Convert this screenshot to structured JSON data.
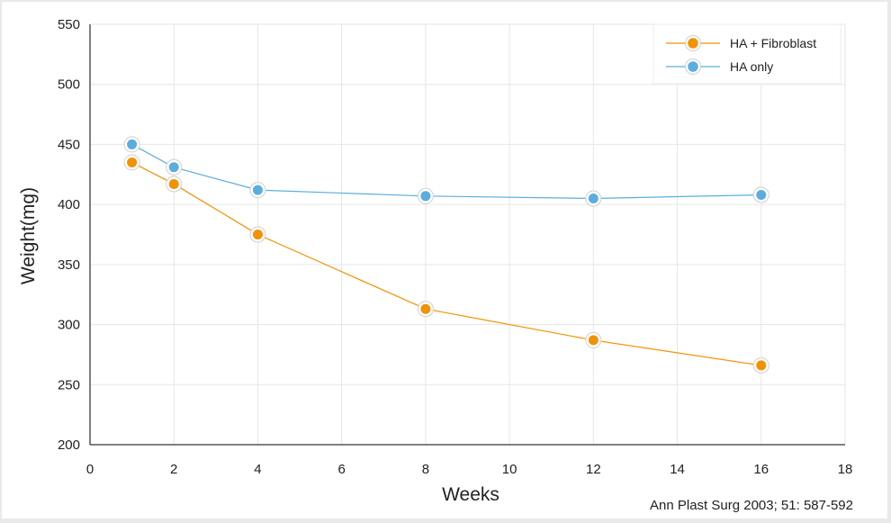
{
  "colors": {
    "series1": "#f39200",
    "series2": "#5aaede",
    "grid": "#e6e6e6",
    "axis": "#000000"
  },
  "source_note": "Ann Plast Surg 2003; 51: 587-592",
  "chart_data": {
    "type": "line",
    "title": "",
    "xlabel": "Weeks",
    "ylabel": "Weight(mg)",
    "xlim": [
      0,
      18
    ],
    "ylim": [
      200,
      550
    ],
    "x_ticks": [
      0,
      2,
      4,
      6,
      8,
      10,
      12,
      14,
      16,
      18
    ],
    "y_ticks": [
      200,
      250,
      300,
      350,
      400,
      450,
      500,
      550
    ],
    "grid": true,
    "legend_position": "top-right",
    "series": [
      {
        "name": "HA + Fibroblast",
        "color": "#f39200",
        "x": [
          1,
          2,
          4,
          8,
          12,
          16
        ],
        "y": [
          435,
          417,
          375,
          313,
          287,
          266
        ]
      },
      {
        "name": "HA only",
        "color": "#5aaede",
        "x": [
          1,
          2,
          4,
          8,
          12,
          16
        ],
        "y": [
          450,
          431,
          412,
          407,
          405,
          408
        ]
      }
    ]
  }
}
